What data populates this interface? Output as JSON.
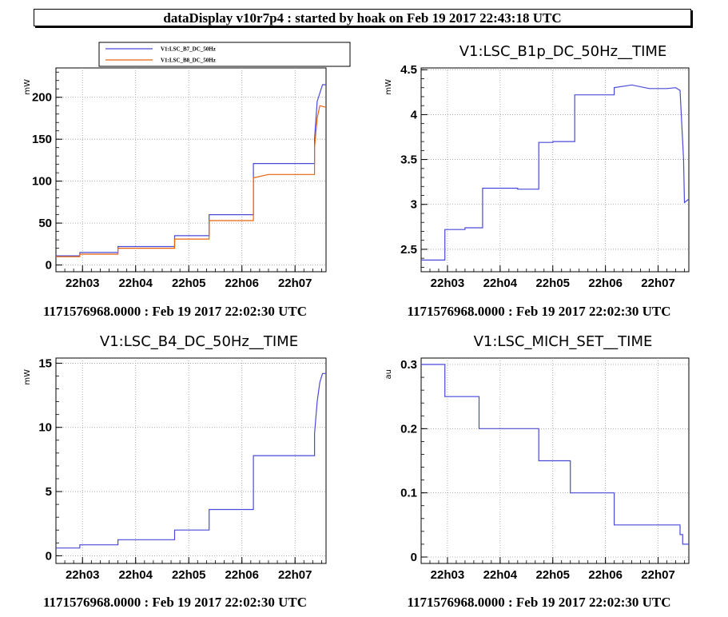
{
  "header": {
    "title": "dataDisplay v10r7p4 : started by hoak on Feb 19 2017 22:43:18 UTC"
  },
  "colors": {
    "blue": "#4a4ad8",
    "orange": "#e8640c",
    "grid": "#9a9a9a"
  },
  "chart_data": [
    {
      "type": "line",
      "title": "",
      "ylabel": "mW",
      "xlabel": "",
      "footer": "1171576968.0000 : Feb 19 2017 22:02:30 UTC",
      "xlim": [
        "22:02:30",
        "22:07:35"
      ],
      "x_ticks": [
        "22h03",
        "22h04",
        "22h05",
        "22h06",
        "22h07"
      ],
      "ylim": [
        -8,
        235
      ],
      "y_ticks": [
        "0",
        "50",
        "100",
        "150",
        "200"
      ],
      "legend": {
        "placement": "top",
        "entries": [
          "V1:LSC_B7_DC_50Hz",
          "V1:LSC_B8_DC_50Hz"
        ]
      },
      "grid": true,
      "series": [
        {
          "name": "V1:LSC_B7_DC_50Hz",
          "color": "#4a4ad8",
          "x": [
            "22:02:30",
            "22:02:57",
            "22:02:57",
            "22:03:40",
            "22:03:40",
            "22:04:44",
            "22:04:44",
            "22:05:23",
            "22:05:23",
            "22:06:13",
            "22:06:13",
            "22:07:22",
            "22:07:22",
            "22:07:25",
            "22:07:28",
            "22:07:31",
            "22:07:35"
          ],
          "y": [
            11,
            11,
            15,
            15,
            22,
            22,
            35,
            35,
            60,
            60,
            121,
            121,
            150,
            195,
            205,
            215,
            215
          ]
        },
        {
          "name": "V1:LSC_B8_DC_50Hz",
          "color": "#e8640c",
          "x": [
            "22:02:30",
            "22:02:57",
            "22:02:57",
            "22:03:40",
            "22:03:40",
            "22:04:44",
            "22:04:44",
            "22:05:23",
            "22:05:23",
            "22:06:13",
            "22:06:13",
            "22:06:30",
            "22:07:22",
            "22:07:22",
            "22:07:25",
            "22:07:28",
            "22:07:35"
          ],
          "y": [
            10,
            10,
            13,
            13,
            20,
            20,
            31,
            31,
            53,
            53,
            104,
            108,
            108,
            140,
            175,
            190,
            188
          ]
        }
      ]
    },
    {
      "type": "line",
      "title": "V1:LSC_B1p_DC_50Hz__TIME",
      "ylabel": "mW",
      "xlabel": "",
      "footer": "1171576968.0000 : Feb 19 2017 22:02:30 UTC",
      "xlim": [
        "22:02:30",
        "22:07:35"
      ],
      "x_ticks": [
        "22h03",
        "22h04",
        "22h05",
        "22h06",
        "22h07"
      ],
      "ylim": [
        2.25,
        4.52
      ],
      "y_ticks": [
        "2.5",
        "3",
        "3.5",
        "4",
        "4.5"
      ],
      "grid": true,
      "series": [
        {
          "name": "",
          "color": "#4a4ad8",
          "x": [
            "22:02:30",
            "22:02:57",
            "22:02:57",
            "22:03:20",
            "22:03:20",
            "22:03:40",
            "22:03:40",
            "22:04:20",
            "22:04:20",
            "22:04:44",
            "22:04:44",
            "22:05:00",
            "22:05:00",
            "22:05:25",
            "22:05:25",
            "22:06:10",
            "22:06:10",
            "22:06:30",
            "22:06:50",
            "22:07:10",
            "22:07:20",
            "22:07:25",
            "22:07:29",
            "22:07:30",
            "22:07:35"
          ],
          "y": [
            2.38,
            2.38,
            2.72,
            2.72,
            2.74,
            2.74,
            3.18,
            3.18,
            3.17,
            3.17,
            3.69,
            3.69,
            3.7,
            3.7,
            4.22,
            4.22,
            4.3,
            4.33,
            4.29,
            4.29,
            4.3,
            4.27,
            3.5,
            3.02,
            3.06
          ]
        }
      ]
    },
    {
      "type": "line",
      "title": "V1:LSC_B4_DC_50Hz__TIME",
      "ylabel": "mW",
      "xlabel": "",
      "footer": "1171576968.0000 : Feb 19 2017 22:02:30 UTC",
      "xlim": [
        "22:02:30",
        "22:07:35"
      ],
      "x_ticks": [
        "22h03",
        "22h04",
        "22h05",
        "22h06",
        "22h07"
      ],
      "ylim": [
        -0.6,
        15.4
      ],
      "y_ticks": [
        "0",
        "5",
        "10",
        "15"
      ],
      "grid": true,
      "series": [
        {
          "name": "",
          "color": "#4a4ad8",
          "x": [
            "22:02:30",
            "22:02:57",
            "22:02:57",
            "22:03:40",
            "22:03:40",
            "22:04:44",
            "22:04:44",
            "22:05:23",
            "22:05:23",
            "22:06:13",
            "22:06:13",
            "22:07:22",
            "22:07:22",
            "22:07:25",
            "22:07:28",
            "22:07:31",
            "22:07:35"
          ],
          "y": [
            0.6,
            0.6,
            0.85,
            0.85,
            1.25,
            1.25,
            2.0,
            2.0,
            3.6,
            3.6,
            7.8,
            7.8,
            9.5,
            12.0,
            13.5,
            14.2,
            14.2
          ]
        }
      ]
    },
    {
      "type": "line",
      "title": "V1:LSC_MICH_SET__TIME",
      "ylabel": "au",
      "xlabel": "",
      "footer": "1171576968.0000 : Feb 19 2017 22:02:30 UTC",
      "xlim": [
        "22:02:30",
        "22:07:35"
      ],
      "x_ticks": [
        "22h03",
        "22h04",
        "22h05",
        "22h06",
        "22h07"
      ],
      "ylim": [
        -0.01,
        0.31
      ],
      "y_ticks": [
        "0",
        "0.1",
        "0.2",
        "0.3"
      ],
      "grid": true,
      "series": [
        {
          "name": "",
          "color": "#4a4ad8",
          "x": [
            "22:02:30",
            "22:02:57",
            "22:02:57",
            "22:03:36",
            "22:03:36",
            "22:04:44",
            "22:04:44",
            "22:05:20",
            "22:05:20",
            "22:06:10",
            "22:06:10",
            "22:07:25",
            "22:07:25",
            "22:07:28",
            "22:07:28",
            "22:07:35"
          ],
          "y": [
            0.3,
            0.3,
            0.25,
            0.25,
            0.2,
            0.2,
            0.15,
            0.15,
            0.1,
            0.1,
            0.05,
            0.05,
            0.035,
            0.035,
            0.02,
            0.02
          ]
        }
      ]
    }
  ]
}
